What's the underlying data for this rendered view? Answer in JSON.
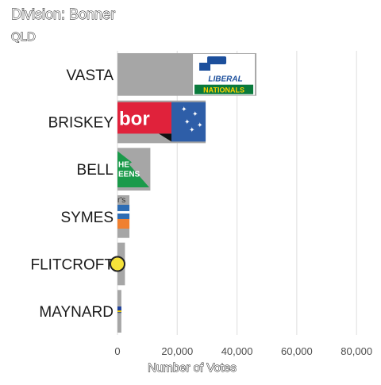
{
  "chart_data": {
    "type": "bar",
    "orientation": "horizontal",
    "title": "Division: Bonner",
    "subtitle": "QLD",
    "xlabel": "Number of Votes",
    "ylabel": "",
    "xlim": [
      0,
      85000
    ],
    "xticks": [
      0,
      20000,
      40000,
      60000,
      80000
    ],
    "xtick_labels": [
      "0",
      "20,000",
      "40,000",
      "60,000",
      "80,000"
    ],
    "grid": true,
    "categories": [
      "VASTA",
      "BRISKEY",
      "BELL",
      "SYMES",
      "FLITCROFT",
      "MAYNARD"
    ],
    "values": [
      46500,
      29500,
      11000,
      4000,
      2500,
      1300
    ],
    "bar_color": "#a6a6a6",
    "logos": [
      {
        "party": "Liberal National",
        "colors": [
          "#1c4f9c",
          "#0a7a3c",
          "#ffd200"
        ],
        "text": [
          "LIBERAL",
          "NATIONALS"
        ]
      },
      {
        "party": "Labor",
        "colors": [
          "#e0223b",
          "#2e5ea8"
        ],
        "text": [
          "bor"
        ]
      },
      {
        "party": "Greens",
        "colors": [
          "#1a9a4a"
        ],
        "text": [
          "HE",
          "EENS"
        ]
      },
      {
        "party": "Minor party",
        "colors": [
          "#2e6db4",
          "#f08030"
        ],
        "text": [
          "r's"
        ]
      },
      {
        "party": "Minor party",
        "colors": [
          "#f5e23a"
        ],
        "text": []
      },
      {
        "party": "Minor party",
        "colors": [
          "#1c3f9c"
        ],
        "text": []
      }
    ]
  }
}
